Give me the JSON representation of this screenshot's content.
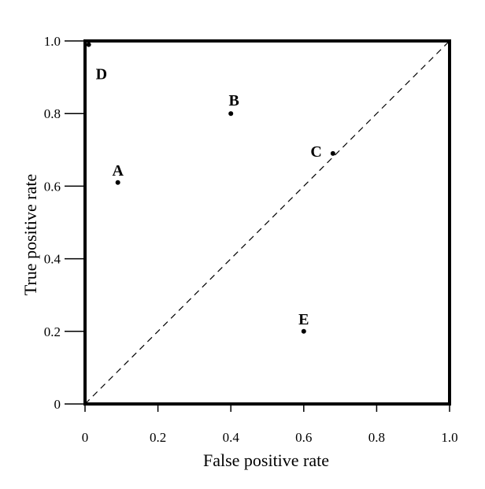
{
  "chart_data": {
    "type": "scatter",
    "title": "",
    "xlabel": "False positive rate",
    "ylabel": "True positive rate",
    "xlim": [
      0,
      1
    ],
    "ylim": [
      0,
      1
    ],
    "x_ticks": [
      "0",
      "0.2",
      "0.4",
      "0.6",
      "0.8",
      "1.0"
    ],
    "y_ticks": [
      "0",
      "0.2",
      "0.4",
      "0.6",
      "0.8",
      "1.0"
    ],
    "grid": false,
    "reference_line": {
      "style": "dashed",
      "from": [
        0,
        0
      ],
      "to": [
        1,
        1
      ]
    },
    "points": [
      {
        "label": "A",
        "x": 0.09,
        "y": 0.61
      },
      {
        "label": "B",
        "x": 0.4,
        "y": 0.8
      },
      {
        "label": "C",
        "x": 0.68,
        "y": 0.69
      },
      {
        "label": "D",
        "x": 0.01,
        "y": 0.99
      },
      {
        "label": "E",
        "x": 0.6,
        "y": 0.2
      }
    ]
  }
}
